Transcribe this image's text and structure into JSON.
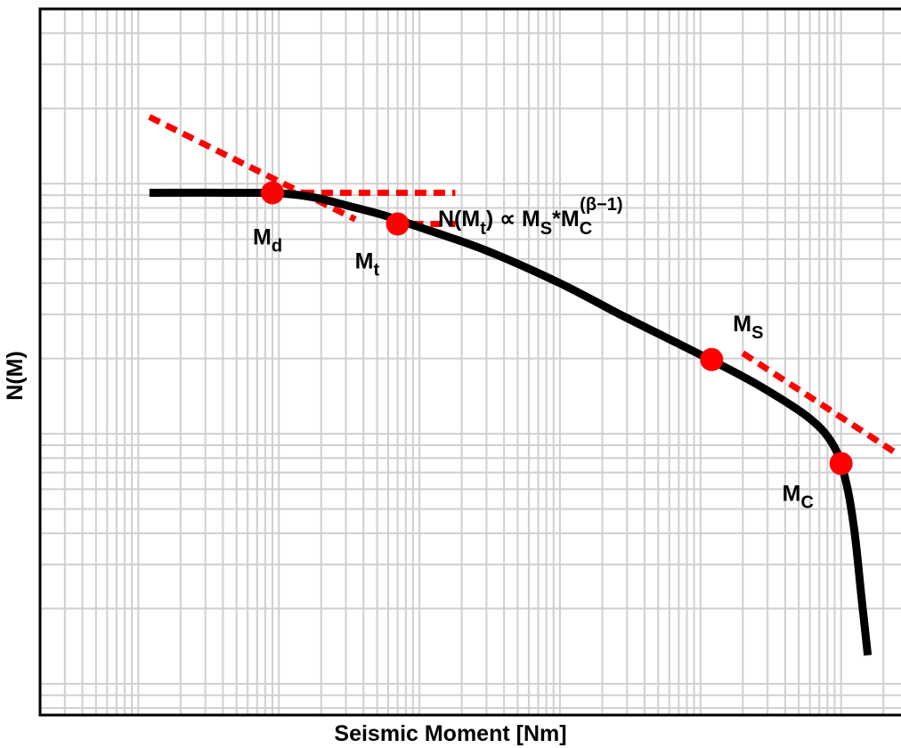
{
  "chart_data": {
    "type": "line",
    "title": "",
    "xlabel": "Seismic Moment [Nm]",
    "ylabel": "N(M)",
    "xscale": "log",
    "yscale": "log",
    "grid": true,
    "tick_labels_shown": false,
    "series": [
      {
        "role": "cumulative-distribution-curve",
        "color": "#000000",
        "style": "solid",
        "x": [
          0.12,
          0.7,
          1.0,
          1.4,
          2.0,
          3.0,
          5.5,
          10,
          30,
          100,
          300,
          1000,
          2500,
          6000,
          9000,
          11000,
          12500,
          14000,
          15500
        ],
        "y": [
          0.92,
          0.92,
          0.915,
          0.9,
          0.87,
          0.82,
          0.75,
          0.67,
          0.54,
          0.4,
          0.29,
          0.207,
          0.158,
          0.115,
          0.088,
          0.062,
          0.04,
          0.022,
          0.013
        ]
      },
      {
        "role": "power-law-asymptote-low",
        "color": "#ff0000",
        "style": "dotted",
        "x": [
          0.12,
          3.5
        ],
        "y": [
          1.85,
          0.72
        ]
      },
      {
        "role": "power-law-asymptote-high",
        "color": "#ff0000",
        "style": "dotted",
        "x": [
          2000,
          26000
        ],
        "y": [
          0.21,
          0.082
        ]
      },
      {
        "role": "plateau-line-Md",
        "color": "#ff0000",
        "style": "dotted",
        "x": [
          0.8,
          18
        ],
        "y": [
          0.92,
          0.92
        ]
      },
      {
        "role": "plateau-line-Mt",
        "color": "#ff0000",
        "style": "dotted",
        "x": [
          6.5,
          18
        ],
        "y": [
          0.69,
          0.69
        ]
      }
    ],
    "points": [
      {
        "id": "Md",
        "base": "M",
        "sub": "d",
        "x": 0.9,
        "y": 0.92,
        "color": "#ff0000"
      },
      {
        "id": "Mt",
        "base": "M",
        "sub": "t",
        "x": 7,
        "y": 0.69,
        "color": "#ff0000"
      },
      {
        "id": "MS",
        "base": "M",
        "sub": "S",
        "x": 1200,
        "y": 0.198,
        "color": "#ff0000"
      },
      {
        "id": "MC",
        "base": "M",
        "sub": "C",
        "x": 10000,
        "y": 0.076,
        "color": "#ff0000"
      }
    ],
    "annotation": {
      "formula": {
        "p1": "N(M",
        "p1sub": "t",
        "p2": ") ∝ M",
        "p2sub": "S",
        "p3": "*M",
        "p3sub": "C",
        "p3sup": "(β−1)"
      }
    },
    "xlim": [
      0.02,
      30000
    ],
    "ylim": [
      0.0075,
      5
    ],
    "grid_decades_x": [
      0.1,
      1,
      10,
      100,
      1000,
      10000
    ],
    "grid_decades_y": [
      0.01,
      0.1,
      1
    ],
    "colors": {
      "curve": "#000000",
      "markers": "#ff0000",
      "dotted": "#ff0000",
      "grid": "#cfcfcf"
    }
  }
}
